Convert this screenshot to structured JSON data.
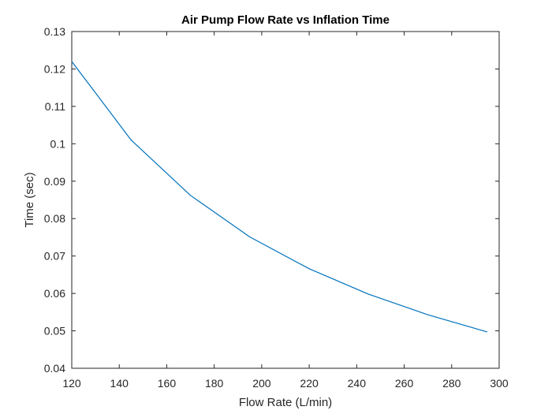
{
  "chart_data": {
    "type": "line",
    "title": "Air Pump Flow Rate vs Inflation Time",
    "xlabel": "Flow Rate (L/min)",
    "ylabel": "Time (sec)",
    "xlim": [
      120,
      300
    ],
    "ylim": [
      0.04,
      0.13
    ],
    "x_ticks": [
      120,
      140,
      160,
      180,
      200,
      220,
      240,
      260,
      280,
      300
    ],
    "x_tick_labels": [
      "120",
      "140",
      "160",
      "180",
      "200",
      "220",
      "240",
      "260",
      "280",
      "300"
    ],
    "y_ticks": [
      0.04,
      0.05,
      0.06,
      0.07,
      0.08,
      0.09,
      0.1,
      0.11,
      0.12,
      0.13
    ],
    "y_tick_labels": [
      "0.04",
      "0.05",
      "0.06",
      "0.07",
      "0.08",
      "0.09",
      "0.1",
      "0.11",
      "0.12",
      "0.13"
    ],
    "grid": false,
    "series": [
      {
        "color": "#0072BD",
        "x": [
          120,
          145,
          170,
          195,
          220,
          245,
          270,
          295
        ],
        "y": [
          0.122,
          0.101,
          0.0862,
          0.0751,
          0.0666,
          0.0598,
          0.0543,
          0.0497
        ]
      }
    ],
    "colors": {
      "axes": "#262626",
      "line": "#0072BD"
    }
  }
}
